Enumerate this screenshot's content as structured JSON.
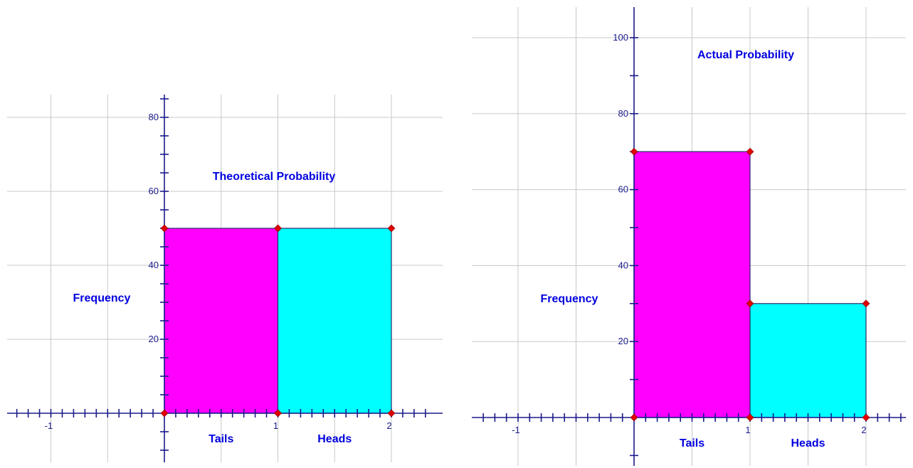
{
  "chart_data": [
    {
      "type": "bar",
      "title": "Theoretical Probability",
      "ylabel": "Frequency",
      "categories": [
        "Tails",
        "Heads"
      ],
      "values": [
        50,
        50
      ],
      "colors": [
        "#ff00ff",
        "#00ffff"
      ],
      "x_tick_labels": [
        "-1",
        "1",
        "2"
      ],
      "y_tick_labels": [
        "20",
        "40",
        "60",
        "80"
      ],
      "xlim": [
        -1.4,
        2.3
      ],
      "ylim": [
        -12,
        86
      ],
      "grid": true
    },
    {
      "type": "bar",
      "title": "Actual Probability",
      "ylabel": "Frequency",
      "categories": [
        "Tails",
        "Heads"
      ],
      "values": [
        70,
        30
      ],
      "colors": [
        "#ff00ff",
        "#00ffff"
      ],
      "x_tick_labels": [
        "-1",
        "1",
        "2"
      ],
      "y_tick_labels": [
        "20",
        "40",
        "60",
        "80",
        "100"
      ],
      "xlim": [
        -1.35,
        2.35
      ],
      "ylim": [
        -13,
        108
      ],
      "grid": true
    }
  ]
}
